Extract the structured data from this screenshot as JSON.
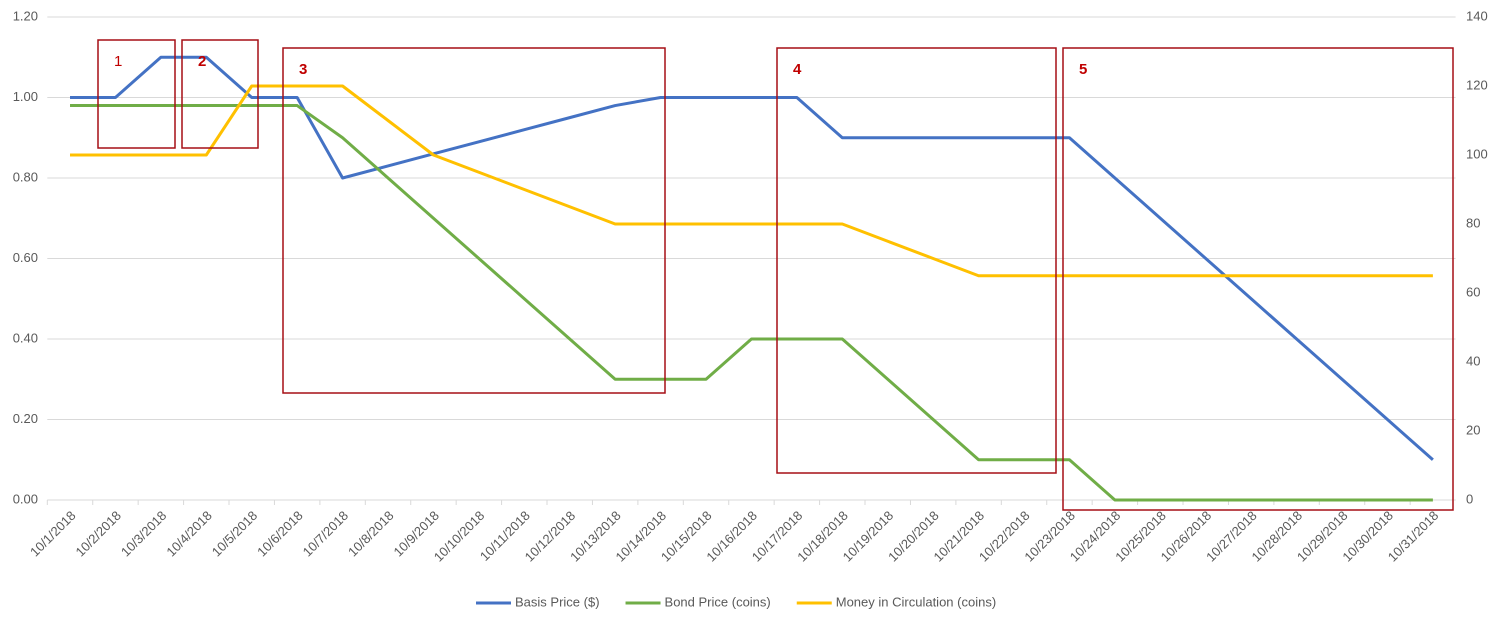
{
  "chart_data": {
    "type": "line",
    "categories": [
      "10/1/2018",
      "10/2/2018",
      "10/3/2018",
      "10/4/2018",
      "10/5/2018",
      "10/6/2018",
      "10/7/2018",
      "10/8/2018",
      "10/9/2018",
      "10/10/2018",
      "10/11/2018",
      "10/12/2018",
      "10/13/2018",
      "10/14/2018",
      "10/15/2018",
      "10/16/2018",
      "10/17/2018",
      "10/18/2018",
      "10/19/2018",
      "10/20/2018",
      "10/21/2018",
      "10/22/2018",
      "10/23/2018",
      "10/24/2018",
      "10/25/2018",
      "10/26/2018",
      "10/27/2018",
      "10/28/2018",
      "10/29/2018",
      "10/30/2018",
      "10/31/2018"
    ],
    "series": [
      {
        "name": "Basis Price ($)",
        "color": "#4472c4",
        "values": [
          1.0,
          1.0,
          1.1,
          1.1,
          1.0,
          1.0,
          0.8,
          0.83,
          0.86,
          0.89,
          0.92,
          0.95,
          0.98,
          1.0,
          1.0,
          1.0,
          1.0,
          0.9,
          0.9,
          0.9,
          0.9,
          0.9,
          0.9,
          0.8,
          0.7,
          0.6,
          0.5,
          0.4,
          0.3,
          0.2,
          0.1
        ]
      },
      {
        "name": "Bond Price (coins)",
        "color": "#70ad47",
        "values": [
          0.98,
          0.98,
          0.98,
          0.98,
          0.98,
          0.98,
          0.9,
          0.8,
          0.7,
          0.6,
          0.5,
          0.4,
          0.3,
          0.3,
          0.3,
          0.4,
          0.4,
          0.4,
          0.3,
          0.2,
          0.1,
          0.1,
          0.1,
          0,
          0,
          0,
          0,
          0,
          0,
          0,
          0
        ]
      },
      {
        "name": "Money in Circulation (coins)",
        "color": "#ffc000",
        "axis": "y2",
        "values": [
          100,
          100,
          100,
          100,
          120,
          120,
          120,
          110,
          100,
          95,
          90,
          85,
          80,
          80,
          80,
          80,
          80,
          80,
          75,
          70,
          65,
          65,
          65,
          65,
          65,
          65,
          65,
          65,
          65,
          65,
          65
        ]
      }
    ],
    "ylim": [
      0,
      1.2
    ],
    "yticks": [
      {
        "value": 0,
        "label": "0.00"
      },
      {
        "value": 0.2,
        "label": "0.20"
      },
      {
        "value": 0.4,
        "label": "0.40"
      },
      {
        "value": 0.6,
        "label": "0.60"
      },
      {
        "value": 0.8,
        "label": "0.80"
      },
      {
        "value": 1.0,
        "label": "1.00"
      },
      {
        "value": 1.2,
        "label": "1.20"
      }
    ],
    "y2lim": [
      0,
      140
    ],
    "y2ticks": [
      0,
      20,
      40,
      60,
      80,
      100,
      120,
      140
    ],
    "grid": true,
    "annotations": [
      "1",
      "2",
      "3",
      "4",
      "5"
    ]
  }
}
